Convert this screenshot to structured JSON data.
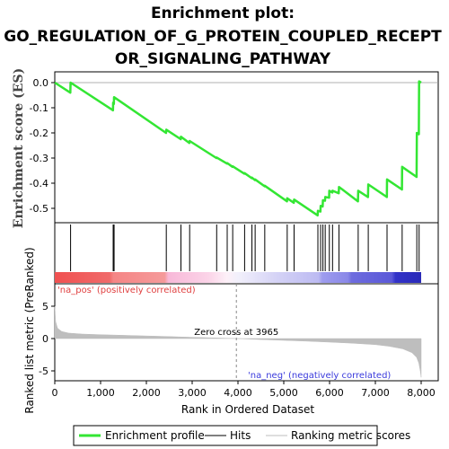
{
  "title_lines": [
    "Enrichment plot:",
    "GO_REGULATION_OF_G_PROTEIN_COUPLED_RECEPT",
    "OR_SIGNALING_PATHWAY"
  ],
  "colors": {
    "es_line": "#33e633",
    "hits": "#000000",
    "metric_fill": "#bebebe",
    "pos_band": "#f05050",
    "neg_band": "#3030d0",
    "zero_line": "#999999"
  },
  "chart_data": [
    {
      "type": "line",
      "name": "enrichment-score",
      "ylabel": "Enrichment score (ES)",
      "ylim": [
        -0.56,
        0.03
      ],
      "xlim": [
        0,
        8400
      ],
      "yticks": [
        0.0,
        -0.1,
        -0.2,
        -0.3,
        -0.4,
        -0.5
      ],
      "ytick_labels": [
        "0.0",
        "-0.1",
        "-0.2",
        "-0.3",
        "-0.4",
        "-0.5"
      ],
      "series": [
        {
          "name": "Enrichment profile",
          "x": [
            0,
            340,
            345,
            1270,
            1275,
            1290,
            1295,
            2430,
            2435,
            2750,
            2755,
            2940,
            2945,
            3530,
            3535,
            3760,
            3765,
            3880,
            3885,
            4140,
            4145,
            4300,
            4305,
            4370,
            4375,
            4580,
            4585,
            5070,
            5075,
            5220,
            5225,
            5740,
            5745,
            5800,
            5805,
            5850,
            5855,
            5900,
            5905,
            5990,
            5995,
            6060,
            6065,
            6200,
            6205,
            6620,
            6625,
            6840,
            6845,
            7250,
            7255,
            7580,
            7585,
            7900,
            7905,
            7950,
            7955,
            8000
          ],
          "y": [
            0.0,
            -0.04,
            0.0,
            -0.11,
            -0.08,
            -0.085,
            -0.058,
            -0.2,
            -0.187,
            -0.225,
            -0.215,
            -0.24,
            -0.232,
            -0.3,
            -0.298,
            -0.322,
            -0.32,
            -0.335,
            -0.333,
            -0.362,
            -0.36,
            -0.38,
            -0.378,
            -0.388,
            -0.385,
            -0.412,
            -0.41,
            -0.472,
            -0.46,
            -0.478,
            -0.465,
            -0.528,
            -0.51,
            -0.513,
            -0.49,
            -0.493,
            -0.468,
            -0.47,
            -0.455,
            -0.458,
            -0.43,
            -0.437,
            -0.43,
            -0.44,
            -0.415,
            -0.472,
            -0.43,
            -0.455,
            -0.405,
            -0.455,
            -0.385,
            -0.425,
            -0.335,
            -0.375,
            -0.2,
            -0.205,
            0.005,
            0.0
          ]
        }
      ]
    },
    {
      "type": "scatter",
      "name": "hits",
      "xlim": [
        0,
        8400
      ],
      "x": [
        345,
        1275,
        1295,
        2435,
        2755,
        2945,
        3535,
        3765,
        3885,
        4145,
        4305,
        4375,
        4585,
        5075,
        5225,
        5745,
        5805,
        5855,
        5905,
        5995,
        6065,
        6205,
        6625,
        6845,
        7255,
        7585,
        7905,
        7955
      ]
    },
    {
      "type": "area",
      "name": "ranking-metric",
      "ylabel": "Ranked list metric (PreRanked)",
      "xlabel": "Rank in Ordered Dataset",
      "xlim": [
        0,
        8400
      ],
      "ylim": [
        -6.3,
        7.3
      ],
      "xticks": [
        0,
        1000,
        2000,
        3000,
        4000,
        5000,
        6000,
        7000,
        8000
      ],
      "xtick_labels": [
        "0",
        "1,000",
        "2,000",
        "3,000",
        "4,000",
        "5,000",
        "6,000",
        "7,000",
        "8,000"
      ],
      "yticks": [
        5,
        0,
        -5
      ],
      "ytick_labels": [
        "5",
        "0",
        "-5"
      ],
      "x": [
        0,
        20,
        60,
        150,
        300,
        600,
        1000,
        1500,
        2000,
        2500,
        3000,
        3500,
        3965,
        4500,
        5000,
        5500,
        6000,
        6500,
        7000,
        7300,
        7600,
        7800,
        7900,
        7950,
        7980,
        8000
      ],
      "y": [
        5.0,
        2.6,
        1.6,
        1.1,
        0.85,
        0.7,
        0.6,
        0.5,
        0.4,
        0.3,
        0.2,
        0.1,
        0.0,
        -0.15,
        -0.28,
        -0.4,
        -0.55,
        -0.72,
        -0.95,
        -1.2,
        -1.6,
        -2.2,
        -2.9,
        -3.8,
        -5.0,
        -6.0
      ],
      "zero_cross": 3965,
      "zero_cross_label": "Zero cross at 3965",
      "pos_label": "'na_pos' (positively correlated)",
      "neg_label": "'na_neg' (negatively correlated)"
    }
  ],
  "legend": [
    {
      "label": "Enrichment profile",
      "color": "#33e633",
      "style": "thick"
    },
    {
      "label": "Hits",
      "color": "#000000",
      "style": "thin"
    },
    {
      "label": "Ranking metric scores",
      "color": "#bebebe",
      "style": "thin"
    }
  ]
}
